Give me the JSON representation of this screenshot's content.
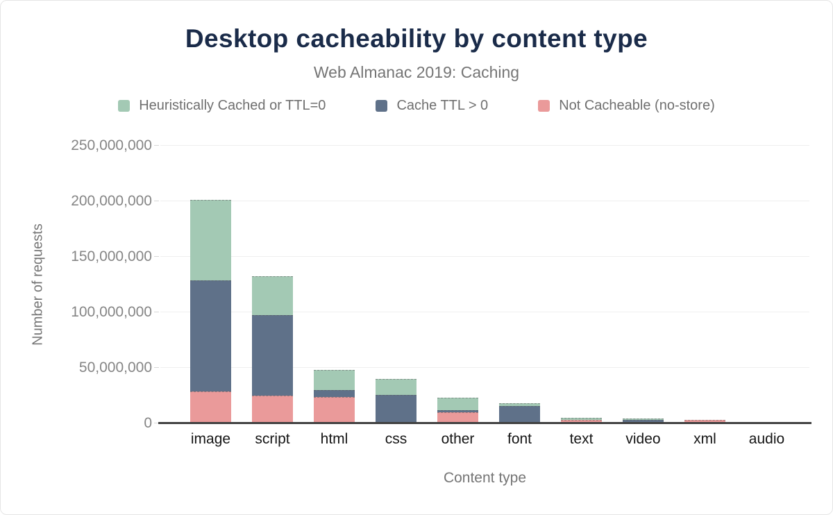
{
  "chart_data": {
    "type": "bar",
    "stacked": true,
    "title": "Desktop cacheability by content type",
    "subtitle": "Web Almanac 2019: Caching",
    "xlabel": "Content type",
    "ylabel": "Number of requests",
    "categories": [
      "image",
      "script",
      "html",
      "css",
      "other",
      "font",
      "text",
      "video",
      "xml",
      "audio"
    ],
    "series": [
      {
        "name": "Heuristically Cached or TTL=0",
        "color": "#a3c9b4",
        "values": [
          72000000,
          35000000,
          18000000,
          14500000,
          11200000,
          2600000,
          1700000,
          1600000,
          0,
          0
        ]
      },
      {
        "name": "Cache TTL > 0",
        "color": "#5f7189",
        "values": [
          100000000,
          72500000,
          6000000,
          25500000,
          1700000,
          15500000,
          0,
          2900000,
          0,
          0
        ]
      },
      {
        "name": "Not Cacheable (no-store)",
        "color": "#ea9a9a",
        "values": [
          29000000,
          25000000,
          24000000,
          0,
          10000000,
          0,
          3000000,
          0,
          3000000,
          0
        ]
      }
    ],
    "stack_order_top_to_bottom": [
      "Heuristically Cached or TTL=0",
      "Cache TTL > 0",
      "Not Cacheable (no-store)"
    ],
    "ylim": [
      0,
      250000000
    ],
    "ytick_step": 50000000,
    "ytick_labels_bottom_to_top": [
      "0",
      "50,000,000",
      "100,000,000",
      "150,000,000",
      "200,000,000",
      "250,000,000"
    ],
    "grid": "horizontal",
    "legend_position": "top"
  },
  "colors": {
    "title_text": "#1a2b49",
    "muted_text": "#757575",
    "ytick_text": "#858585",
    "category_text": "#151515",
    "gridline": "#efefef",
    "axis_line": "#414141"
  }
}
